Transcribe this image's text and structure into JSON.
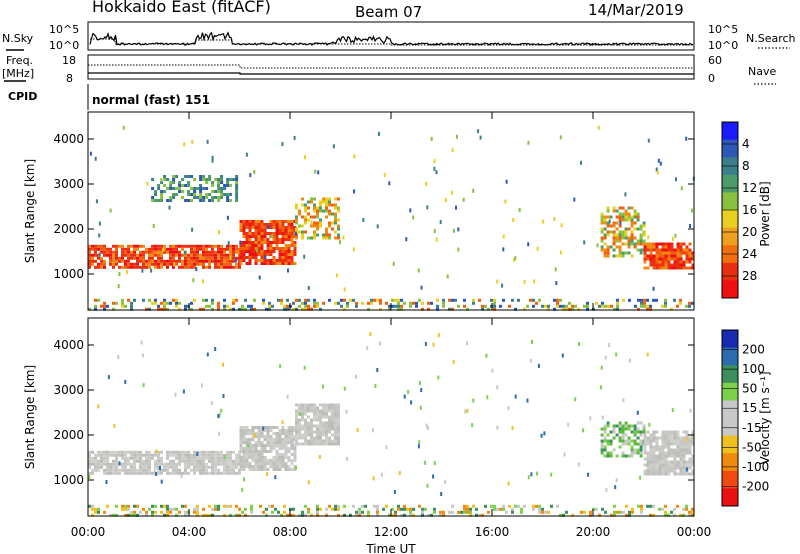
{
  "header": {
    "station": "Hokkaido East (fitACF)",
    "beam": "Beam 07",
    "date": "14/Mar/2019"
  },
  "top_panels": {
    "nsky_label": "N.Sky",
    "nsky_ticks": [
      "10^5",
      "10^0"
    ],
    "nsearch_label": "N.Search",
    "nsearch_ticks": [
      "10^5",
      "10^0"
    ],
    "freq_label": "Freq.",
    "freq_unit": "[MHz]",
    "freq_ticks": [
      "18",
      "8"
    ],
    "nave_label": "Nave",
    "nave_ticks": [
      "60",
      "0"
    ],
    "cpid_label": "CPID",
    "cpid_value": "normal (fast) 151"
  },
  "chart_data": [
    {
      "type": "heatmap",
      "name": "power-panel",
      "ylabel": "Slant Range [km]",
      "xlabel": "",
      "y_ticks": [
        1000,
        2000,
        3000,
        4000
      ],
      "ylim": [
        200,
        4600
      ],
      "x_ticks": [
        "00:00",
        "04:00",
        "08:00",
        "12:00",
        "16:00",
        "20:00",
        "00:00"
      ],
      "xlim_hours": [
        0,
        24
      ],
      "colorbar": {
        "label": "Power [dB]",
        "ticks": [
          "4",
          "8",
          "12",
          "16",
          "20",
          "24",
          "28"
        ],
        "colors": [
          "#1a1aff",
          "#2d58b8",
          "#3b7f8a",
          "#4d9a6a",
          "#88c140",
          "#e8d020",
          "#f0a020",
          "#f07010",
          "#e83010",
          "#ee1010"
        ]
      },
      "echo_regions": [
        {
          "t": [
            0.0,
            6.0
          ],
          "range": [
            1150,
            1650
          ],
          "level": "high"
        },
        {
          "t": [
            6.0,
            8.2
          ],
          "range": [
            1200,
            2200
          ],
          "level": "high"
        },
        {
          "t": [
            8.2,
            9.9
          ],
          "range": [
            1800,
            2700
          ],
          "level": "mid"
        },
        {
          "t": [
            2.5,
            5.9
          ],
          "range": [
            2650,
            3200
          ],
          "level": "low"
        },
        {
          "t": [
            20.3,
            22.0
          ],
          "range": [
            1400,
            2500
          ],
          "level": "mid"
        },
        {
          "t": [
            22.0,
            24.0
          ],
          "range": [
            1100,
            1700
          ],
          "level": "high"
        },
        {
          "t": [
            0.0,
            24.0
          ],
          "range": [
            200,
            450
          ],
          "level": "ground"
        }
      ]
    },
    {
      "type": "heatmap",
      "name": "velocity-panel",
      "ylabel": "Slant Range [km]",
      "xlabel": "Time UT",
      "y_ticks": [
        1000,
        2000,
        3000,
        4000
      ],
      "ylim": [
        200,
        4600
      ],
      "x_ticks": [
        "00:00",
        "04:00",
        "08:00",
        "12:00",
        "16:00",
        "20:00",
        "00:00"
      ],
      "xlim_hours": [
        0,
        24
      ],
      "colorbar": {
        "label": "Velocity [m s⁻¹]",
        "ticks": [
          "200",
          "100",
          "50",
          "15",
          "-15",
          "-50",
          "-100",
          "-200"
        ],
        "colors": [
          "#1a2ab0",
          "#2c6bb0",
          "#3c8f5c",
          "#7cd04a",
          "#c8c8c8",
          "#c8c8c8",
          "#f0c020",
          "#f08a10",
          "#f04a10",
          "#e81010"
        ]
      },
      "echo_regions": [
        {
          "t": [
            0.0,
            6.0
          ],
          "range": [
            1150,
            1650
          ],
          "level": "gray"
        },
        {
          "t": [
            6.0,
            8.2
          ],
          "range": [
            1200,
            2200
          ],
          "level": "gray"
        },
        {
          "t": [
            8.2,
            9.9
          ],
          "range": [
            1800,
            2700
          ],
          "level": "gray"
        },
        {
          "t": [
            20.3,
            22.0
          ],
          "range": [
            1500,
            2300
          ],
          "level": "green"
        },
        {
          "t": [
            22.0,
            24.0
          ],
          "range": [
            1150,
            2100
          ],
          "level": "gray"
        },
        {
          "t": [
            0.0,
            24.0
          ],
          "range": [
            200,
            450
          ],
          "level": "ground"
        }
      ]
    }
  ]
}
